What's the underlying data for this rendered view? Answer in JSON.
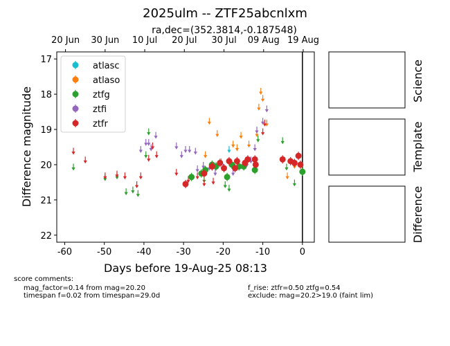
{
  "chart_data": {
    "type": "scatter",
    "title": "2025ulm -- ZTF25abcnlxm",
    "subtitle": "ra,dec=(352.3814,-0.187548)",
    "xlabel": "Days before 19-Aug-25 08:13",
    "ylabel": "Difference magnitude",
    "xlim": [
      -62,
      3
    ],
    "ylim": [
      22.2,
      16.8
    ],
    "xticks": [
      -60,
      -50,
      -40,
      -30,
      -20,
      -10,
      0
    ],
    "yticks": [
      17,
      18,
      19,
      20,
      21,
      22
    ],
    "top_axis_ticks": [
      {
        "x": -59.8,
        "label": "20 Jun"
      },
      {
        "x": -49.8,
        "label": "30 Jun"
      },
      {
        "x": -39.8,
        "label": "10 Jul"
      },
      {
        "x": -29.8,
        "label": "20 Jul"
      },
      {
        "x": -19.8,
        "label": "30 Jul"
      },
      {
        "x": -9.8,
        "label": "09 Aug"
      },
      {
        "x": 0.2,
        "label": "19 Aug"
      }
    ],
    "vline_x": 0,
    "legend": {
      "position": "top-left",
      "entries": [
        "atlasc",
        "atlaso",
        "ztfg",
        "ztfi",
        "ztfr"
      ]
    },
    "colors": {
      "atlasc": "#17becf",
      "atlaso": "#ff7f0e",
      "ztfg": "#2ca02c",
      "ztfi": "#9467bd",
      "ztfr": "#d62728"
    },
    "series": [
      {
        "name": "atlasc",
        "detections": [],
        "upper_limits": [
          [
            -18.5,
            19.55
          ]
        ]
      },
      {
        "name": "atlaso",
        "detections": [],
        "upper_limits": [
          [
            -24.5,
            19.7
          ],
          [
            -23.5,
            18.75
          ],
          [
            -21.5,
            19.1
          ],
          [
            -20.5,
            19.9
          ],
          [
            -17.5,
            19.4
          ],
          [
            -16.5,
            19.5
          ],
          [
            -15.5,
            19.15
          ],
          [
            -13.5,
            19.4
          ],
          [
            -11.5,
            19.1
          ],
          [
            -11.0,
            18.35
          ],
          [
            -10.5,
            17.9
          ],
          [
            -10.0,
            18.1
          ],
          [
            -9.0,
            18.8
          ],
          [
            -3.8,
            20.3
          ],
          [
            -2.0,
            20.0
          ]
        ]
      },
      {
        "name": "ztfg",
        "detections": [
          [
            -28.0,
            20.35
          ],
          [
            -25.5,
            20.25
          ],
          [
            -24.5,
            20.15
          ],
          [
            -22.8,
            20.0
          ],
          [
            -21.8,
            20.05
          ],
          [
            -19.0,
            20.35
          ],
          [
            -17.8,
            20.0
          ],
          [
            -16.0,
            20.05
          ],
          [
            -14.8,
            20.05
          ],
          [
            -12.0,
            20.15
          ],
          [
            0.0,
            20.2
          ]
        ],
        "upper_limits": [
          [
            -57.8,
            20.05
          ],
          [
            -49.8,
            20.35
          ],
          [
            -46.8,
            20.3
          ],
          [
            -44.5,
            20.75
          ],
          [
            -42.8,
            20.7
          ],
          [
            -41.5,
            20.8
          ],
          [
            -39.5,
            19.7
          ],
          [
            -38.8,
            19.05
          ],
          [
            -24.8,
            20.4
          ],
          [
            -19.5,
            20.55
          ],
          [
            -18.5,
            20.65
          ],
          [
            -14.5,
            19.95
          ],
          [
            -11.2,
            19.25
          ],
          [
            -5.0,
            19.3
          ],
          [
            -4.0,
            20.05
          ],
          [
            -2.0,
            20.5
          ]
        ]
      },
      {
        "name": "ztfi",
        "detections": [],
        "upper_limits": [
          [
            -40.8,
            19.55
          ],
          [
            -39.5,
            19.35
          ],
          [
            -38.8,
            19.35
          ],
          [
            -38.2,
            19.5
          ],
          [
            -37.0,
            19.15
          ],
          [
            -31.8,
            19.45
          ],
          [
            -30.5,
            19.7
          ],
          [
            -29.5,
            19.55
          ],
          [
            -28.5,
            19.55
          ],
          [
            -27.0,
            19.6
          ],
          [
            -26.5,
            20.1
          ],
          [
            -25.0,
            20.0
          ],
          [
            -23.5,
            20.05
          ],
          [
            -22.0,
            20.2
          ],
          [
            -20.0,
            20.05
          ],
          [
            -17.5,
            20.2
          ],
          [
            -14.0,
            19.95
          ],
          [
            -13.0,
            19.85
          ],
          [
            -12.0,
            19.5
          ],
          [
            -11.5,
            19.0
          ],
          [
            -10.0,
            18.75
          ],
          [
            -9.0,
            18.4
          ]
        ]
      },
      {
        "name": "ztfr",
        "detections": [
          [
            -29.5,
            20.55
          ],
          [
            -24.8,
            20.25
          ],
          [
            -22.8,
            20.05
          ],
          [
            -20.8,
            19.95
          ],
          [
            -19.8,
            20.1
          ],
          [
            -18.5,
            19.9
          ],
          [
            -17.0,
            20.1
          ],
          [
            -16.5,
            19.9
          ],
          [
            -14.5,
            19.95
          ],
          [
            -13.8,
            19.85
          ],
          [
            -12.0,
            19.85
          ],
          [
            -11.8,
            20.0
          ],
          [
            -5.0,
            19.85
          ],
          [
            -3.0,
            19.9
          ],
          [
            -2.0,
            19.95
          ],
          [
            -1.0,
            19.75
          ],
          [
            -0.5,
            20.0
          ]
        ],
        "upper_limits": [
          [
            -57.8,
            19.6
          ],
          [
            -54.8,
            19.85
          ],
          [
            -49.8,
            20.3
          ],
          [
            -46.8,
            20.25
          ],
          [
            -44.8,
            20.3
          ],
          [
            -41.8,
            20.55
          ],
          [
            -40.8,
            20.3
          ],
          [
            -38.8,
            19.8
          ],
          [
            -37.8,
            19.45
          ],
          [
            -36.8,
            19.7
          ],
          [
            -31.8,
            20.2
          ],
          [
            -28.8,
            20.4
          ],
          [
            -26.5,
            20.3
          ],
          [
            -24.8,
            20.5
          ],
          [
            -22.5,
            20.45
          ],
          [
            -10.0,
            19.05
          ],
          [
            -9.5,
            18.8
          ]
        ]
      }
    ]
  },
  "panels": {
    "science": "Science",
    "template": "Template",
    "difference": "Difference"
  },
  "comments": {
    "header": "score comments:",
    "left_1": "mag_factor=0.14 from mag=20.20",
    "left_2": "timespan f=0.02 from timespan=29.0d",
    "right_1": "f_rise: ztfr=0.50 ztfg=0.54",
    "right_2": "exclude: mag=20.2>19.0 (faint lim)"
  }
}
